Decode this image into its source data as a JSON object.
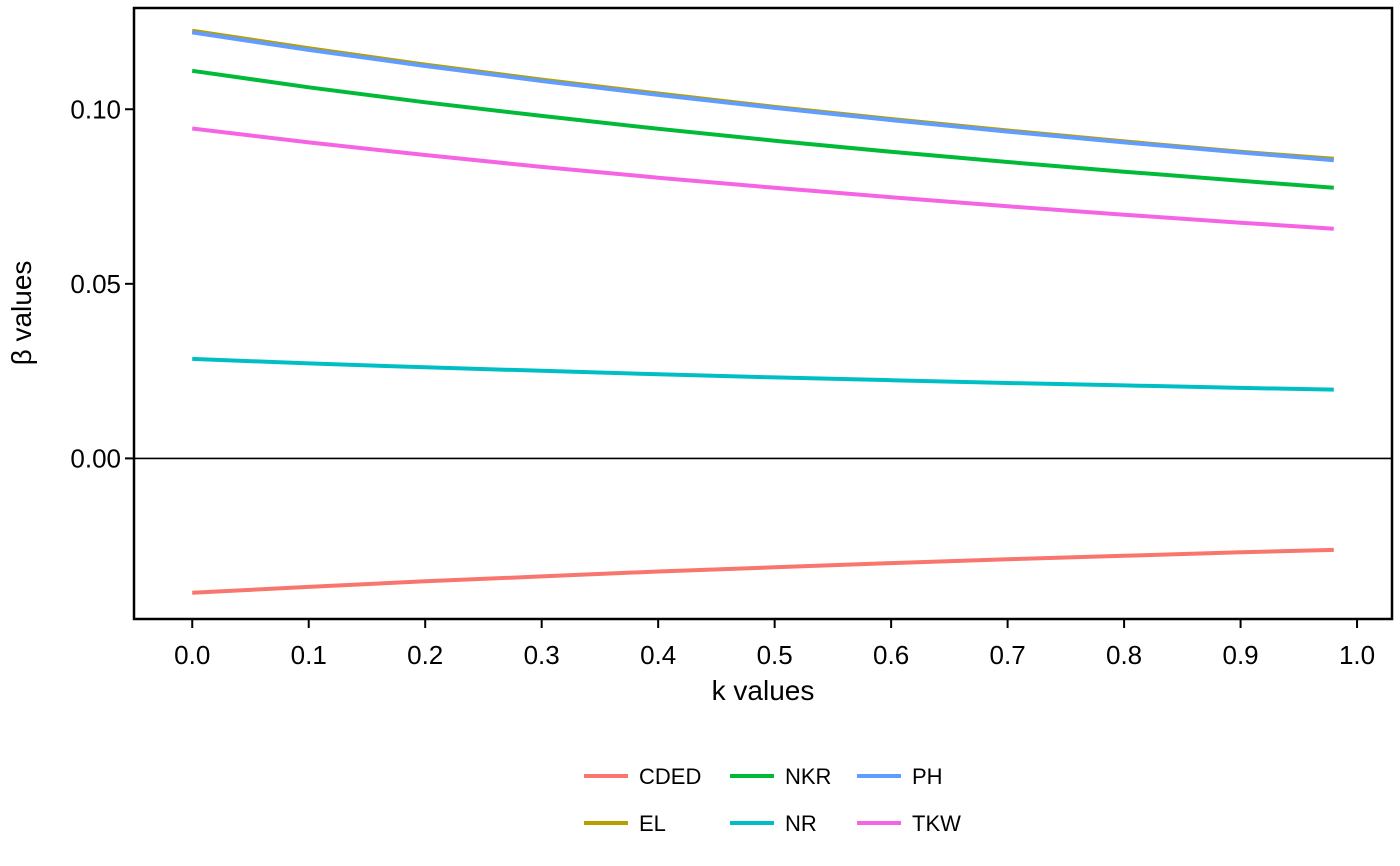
{
  "chart_data": {
    "type": "line",
    "title": "",
    "xlabel": "k values",
    "ylabel": "β values",
    "xlim": [
      -0.05,
      1.03
    ],
    "ylim": [
      -0.046,
      0.129
    ],
    "x_ticks": [
      0.0,
      0.1,
      0.2,
      0.3,
      0.4,
      0.5,
      0.6,
      0.7,
      0.8,
      0.9,
      1.0
    ],
    "x_tick_labels": [
      "0.0",
      "0.1",
      "0.2",
      "0.3",
      "0.4",
      "0.5",
      "0.6",
      "0.7",
      "0.8",
      "0.9",
      "1.0"
    ],
    "y_ticks": [
      0.0,
      0.05,
      0.1
    ],
    "y_tick_labels": [
      "0.00",
      "0.05",
      "0.10"
    ],
    "hline": 0,
    "grid": false,
    "legend_position": "bottom",
    "x": [
      0.0,
      0.1,
      0.2,
      0.3,
      0.4,
      0.5,
      0.6,
      0.7,
      0.8,
      0.9,
      0.98
    ],
    "series": [
      {
        "name": "CDED",
        "color": "#F8766D",
        "values": [
          -0.0385,
          -0.0368,
          -0.0352,
          -0.0338,
          -0.0324,
          -0.0312,
          -0.03,
          -0.0289,
          -0.0279,
          -0.0269,
          -0.0262
        ]
      },
      {
        "name": "EL",
        "color": "#B79F00",
        "values": [
          0.1225,
          0.1175,
          0.1128,
          0.1085,
          0.1045,
          0.1007,
          0.0972,
          0.0939,
          0.0908,
          0.0878,
          0.0858
        ]
      },
      {
        "name": "NKR",
        "color": "#00BA38",
        "values": [
          0.111,
          0.1063,
          0.102,
          0.0981,
          0.0944,
          0.091,
          0.0878,
          0.0849,
          0.0821,
          0.0795,
          0.0775
        ]
      },
      {
        "name": "NR",
        "color": "#00BFC4",
        "values": [
          0.0285,
          0.0272,
          0.0261,
          0.0251,
          0.0241,
          0.0232,
          0.0224,
          0.0216,
          0.0209,
          0.0202,
          0.0197
        ]
      },
      {
        "name": "PH",
        "color": "#619CFF",
        "values": [
          0.122,
          0.117,
          0.1124,
          0.1081,
          0.1041,
          0.1004,
          0.0969,
          0.0936,
          0.0905,
          0.0876,
          0.0854
        ]
      },
      {
        "name": "TKW",
        "color": "#F564E3",
        "values": [
          0.0945,
          0.0905,
          0.0869,
          0.0835,
          0.0804,
          0.0775,
          0.0748,
          0.0722,
          0.0698,
          0.0675,
          0.0658
        ]
      }
    ]
  }
}
